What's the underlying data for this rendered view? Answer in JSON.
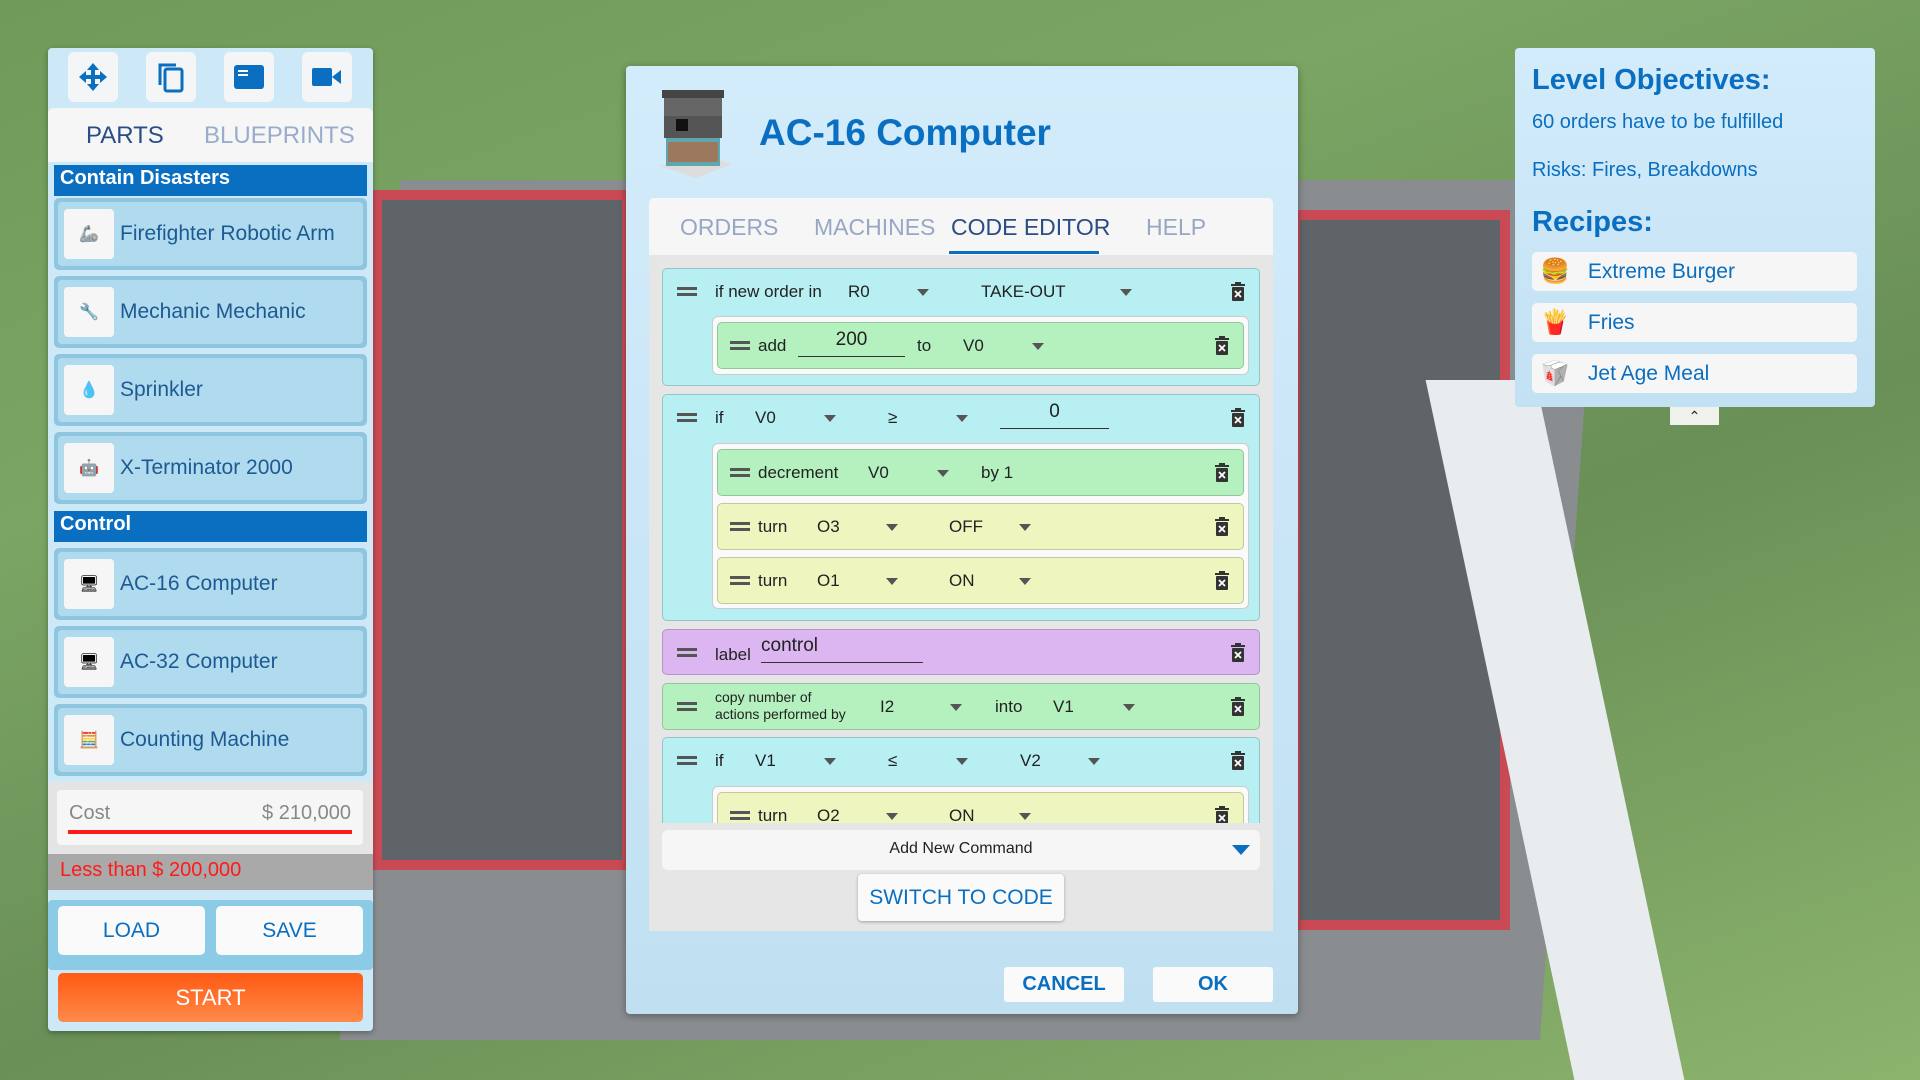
{
  "left_panel": {
    "toolbar": [
      {
        "icon": "move-icon"
      },
      {
        "icon": "copy-icon"
      },
      {
        "icon": "window-icon"
      },
      {
        "icon": "camera-icon"
      }
    ],
    "tabs": [
      {
        "label": "PARTS",
        "active": true
      },
      {
        "label": "BLUEPRINTS",
        "active": false
      }
    ],
    "categories": [
      {
        "title": "Contain Disasters",
        "items": [
          "Firefighter Robotic Arm",
          "Mechanic Mechanic",
          "Sprinkler",
          "X-Terminator 2000"
        ]
      },
      {
        "title": "Control",
        "items": [
          "AC-16 Computer",
          "AC-32 Computer",
          "Counting Machine"
        ]
      }
    ],
    "cost_label": "Cost",
    "cost_value": "$ 210,000",
    "budget_warning": "Less than $ 200,000",
    "load": "LOAD",
    "save": "SAVE",
    "start": "START",
    "colors": {
      "accent": "#0a6fc0",
      "warning": "#ff1a1a",
      "start": "#ff6a1f"
    }
  },
  "modal": {
    "title": "AC-16 Computer",
    "tabs": [
      "ORDERS",
      "MACHINES",
      "CODE EDITOR",
      "HELP"
    ],
    "active_tab": "CODE EDITOR",
    "code": {
      "b1": {
        "text": "if new order in",
        "reg": "R0",
        "type": "TAKE-OUT",
        "add": {
          "text": "add",
          "value": "200",
          "to": "to",
          "var": "V0"
        }
      },
      "b2": {
        "text": "if",
        "var": "V0",
        "op": "≥",
        "value": "0",
        "decrement": {
          "text": "decrement",
          "var": "V0",
          "by": "by 1"
        },
        "turn1": {
          "text": "turn",
          "out": "O3",
          "state": "OFF"
        },
        "turn2": {
          "text": "turn",
          "out": "O1",
          "state": "ON"
        }
      },
      "label": {
        "text": "label",
        "value": "control"
      },
      "copy": {
        "text1": "copy number of",
        "text2": "actions performed by",
        "src": "I2",
        "into": "into",
        "dst": "V1"
      },
      "b3": {
        "text": "if",
        "var": "V1",
        "op": "≤",
        "rhs": "V2",
        "turn": {
          "text": "turn",
          "out": "O2",
          "state": "ON"
        }
      }
    },
    "add_command": "Add New Command",
    "switch": "SWITCH TO CODE",
    "cancel": "CANCEL",
    "ok": "OK"
  },
  "right_panel": {
    "objectives_title": "Level Objectives:",
    "objective": "60 orders have to be fulfilled",
    "risks": "Risks: Fires, Breakdowns",
    "recipes_title": "Recipes:",
    "recipes": [
      "Extreme Burger",
      "Fries",
      "Jet Age Meal"
    ]
  }
}
